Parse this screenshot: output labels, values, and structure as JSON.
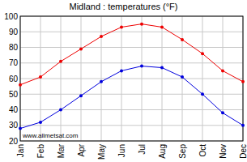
{
  "chart_data": {
    "type": "line",
    "title": "Midland : temperatures (°F)",
    "categories": [
      "Jan",
      "Feb",
      "Mar",
      "Apr",
      "May",
      "Jun",
      "Jul",
      "Aug",
      "Sep",
      "Oct",
      "Nov",
      "Dec"
    ],
    "series": [
      {
        "color": "#ee0000",
        "marker": "circle",
        "values": [
          56,
          61,
          71,
          79,
          87,
          93,
          95,
          93,
          85,
          76,
          65,
          58
        ]
      },
      {
        "color": "#0000dd",
        "marker": "circle",
        "values": [
          28,
          32,
          40,
          49,
          58,
          65,
          68,
          67,
          61,
          50,
          38,
          30
        ]
      }
    ],
    "ylim": [
      20,
      100
    ],
    "yticks": [
      20,
      30,
      40,
      50,
      60,
      70,
      80,
      90,
      100
    ],
    "grid": true,
    "annotations": [
      "www.allmetsat.com"
    ]
  }
}
